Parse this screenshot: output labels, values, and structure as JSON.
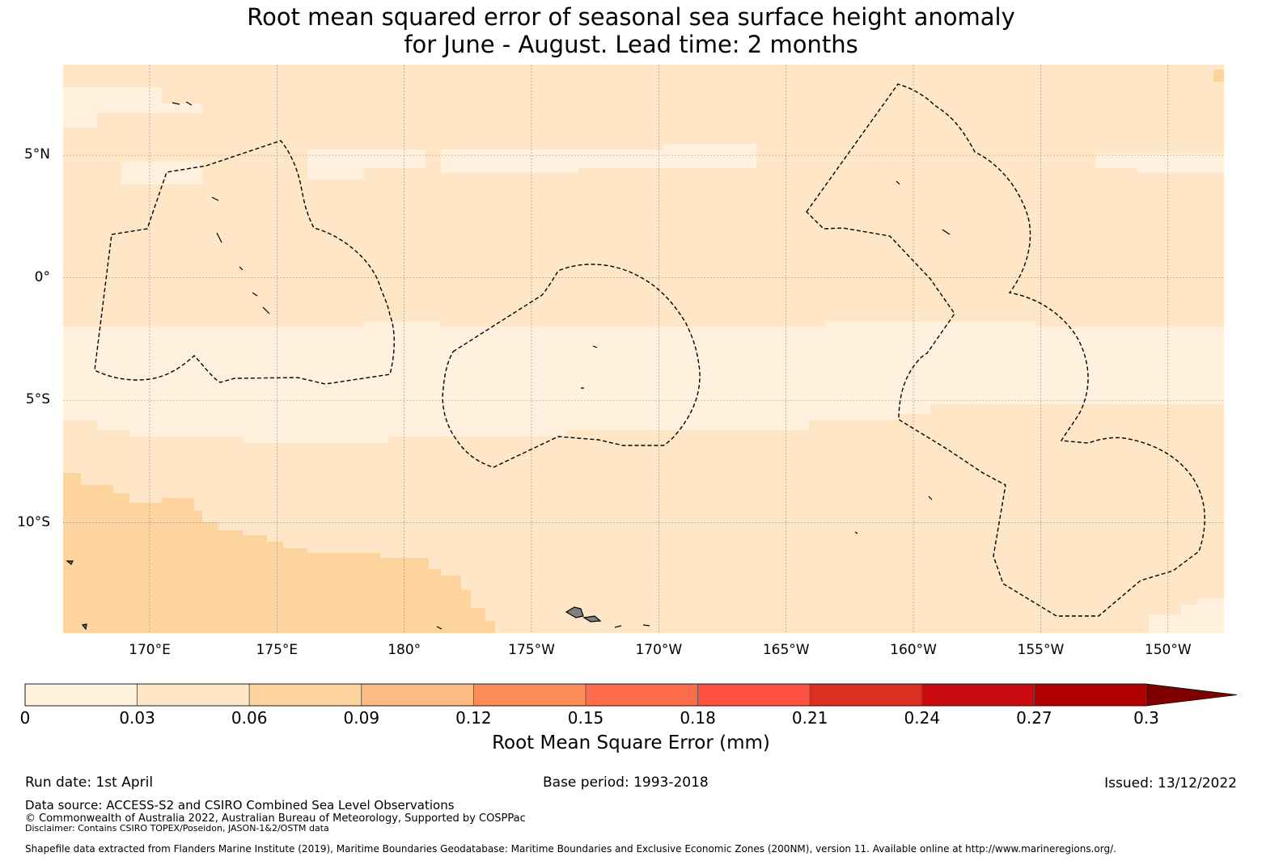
{
  "title": {
    "line1": "Root mean squared error of seasonal sea surface height anomaly",
    "line2": "for June - August. Lead time: 2 months"
  },
  "map": {
    "lon_range": [
      166.6,
      212.2
    ],
    "lat_range": [
      -14.5,
      8.7
    ],
    "lat_ticks": [
      {
        "value": 5,
        "label": "5°N"
      },
      {
        "value": 0,
        "label": "0°"
      },
      {
        "value": -5,
        "label": "5°S"
      },
      {
        "value": -10,
        "label": "10°S"
      }
    ],
    "lon_ticks": [
      {
        "value": 170,
        "label": "170°E"
      },
      {
        "value": 175,
        "label": "175°E"
      },
      {
        "value": 180,
        "label": "180°"
      },
      {
        "value": 185,
        "label": "175°W"
      },
      {
        "value": 190,
        "label": "170°W"
      },
      {
        "value": 195,
        "label": "165°W"
      },
      {
        "value": 200,
        "label": "160°W"
      },
      {
        "value": 205,
        "label": "155°W"
      },
      {
        "value": 210,
        "label": "150°W"
      }
    ],
    "colors": {
      "bin_0_003": "#fff1de",
      "bin_003_006": "#fee6c6",
      "bin_006_009": "#fdd49e",
      "land": "#808080"
    }
  },
  "colorbar": {
    "title": "Root Mean Square Error (mm)",
    "ticks": [
      "0",
      "0.03",
      "0.06",
      "0.09",
      "0.12",
      "0.15",
      "0.18",
      "0.21",
      "0.24",
      "0.27",
      "0.3"
    ],
    "colors": [
      "#fff1de",
      "#fee6c6",
      "#fdd49e",
      "#fdbb84",
      "#fc8d59",
      "#fc6c4a",
      "#fd5040",
      "#db2f22",
      "#c90a0f",
      "#b10000",
      "#7f0000"
    ],
    "extend": "max"
  },
  "footer": {
    "run_date": "Run date: 1st April",
    "base_period": "Base period: 1993-2018",
    "issued": "Issued: 13/12/2022",
    "data_source": "Data source: ACCESS-S2 and CSIRO Combined Sea Level Observations",
    "copyright": "© Commonwealth of Australia 2022, Australian Bureau of Meteorology, Supported by COSPPac",
    "disclaimer": "Disclaimer: Contains CSIRO TOPEX/Poseidon, JASON-1&2/OSTM data",
    "shapefile": "Shapefile data extracted from Flanders Marine Institute (2019), Maritime Boundaries Geodatabase: Maritime Boundaries and Exclusive Economic Zones (200NM), version 11. Available online at http://www.marineregions.org/."
  }
}
